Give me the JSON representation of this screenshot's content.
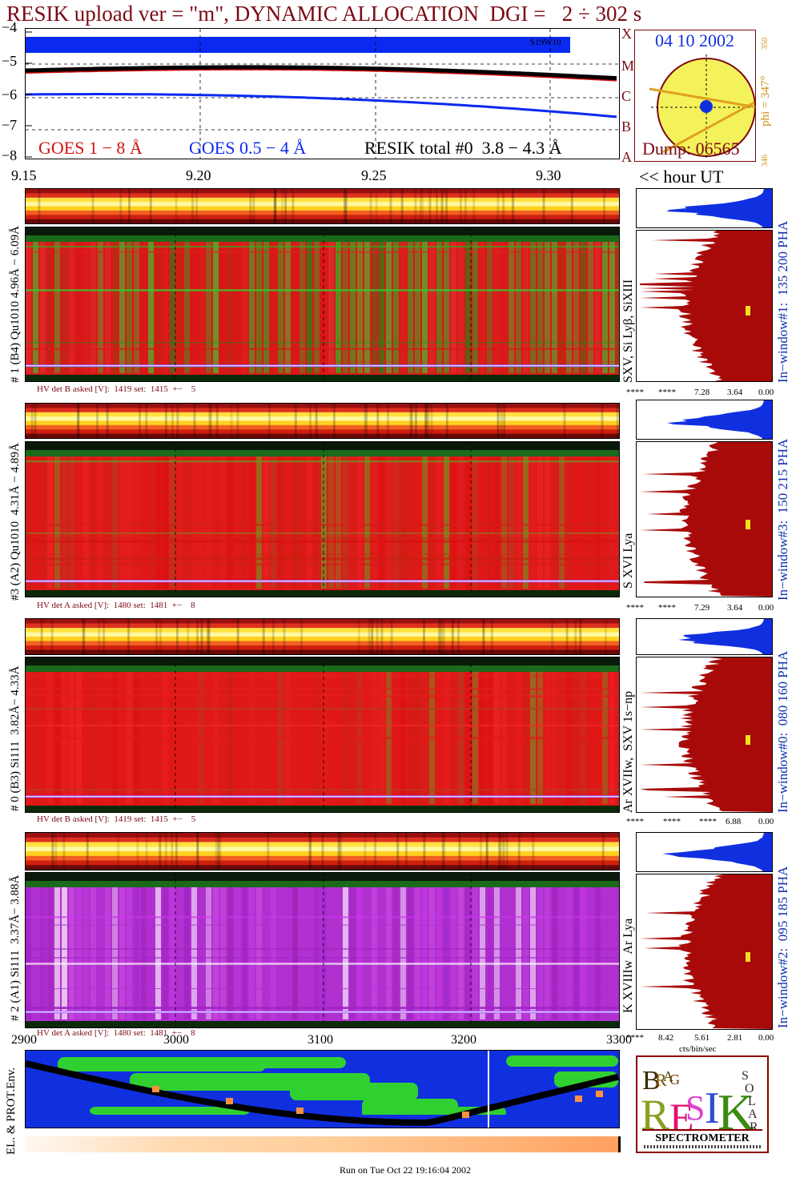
{
  "title": "RESIK upload ver = \"m\", DYNAMIC ALLOCATION  DGI =   2 ÷ 302 s",
  "goes_panel": {
    "yticks": [
      "−4",
      "−5",
      "−6",
      "−7",
      "−8"
    ],
    "flare_tag": "S19W10",
    "legend": {
      "goes_long": "GOES 1 − 8 Å",
      "goes_short": "GOES 0.5 − 4 Å",
      "resik_total": "RESIK total #0  3.8 − 4.3 Å"
    },
    "abcmx": [
      "A",
      "B",
      "C",
      "M",
      "X"
    ],
    "colors": {
      "goes_long": "#d01010",
      "goes_short": "#0a2af0",
      "resik": "#000000"
    }
  },
  "sun_panel": {
    "date": "04 10 2002",
    "dump": "Dump: 06565",
    "phi": "phi = 347°",
    "phi_top": "350",
    "phi_bottom": "346"
  },
  "time_axis": {
    "ticks": [
      "9.15",
      "9.20",
      "9.25",
      "9.30"
    ],
    "unit_label": "<< hour UT"
  },
  "channels": [
    {
      "left_label": "# 1 (B4) Qu1010 4.96Å − 6.09Å",
      "right_label": "SXV, Si Lyβ, SiXIII",
      "window_label": "In−window#1:  135 200 PHA",
      "hv": "HV det B asked [V]:  1419 set:  1415  +−    5",
      "pha_ticks": [
        "****",
        "****",
        "7.28",
        "3.64",
        "0.00"
      ],
      "dominant": "green"
    },
    {
      "left_label": "#3 (A2) Qu1010  4.31Å − 4.89Å",
      "right_label": "S XVI Lya",
      "window_label": "In−window#3:  150 215 PHA",
      "hv": "HV det A asked [V]:  1480 set:  1481  +−    8",
      "pha_ticks": [
        "****",
        "****",
        "7.29",
        "3.64",
        "0.00"
      ],
      "dominant": "red"
    },
    {
      "left_label": "# 0 (B3) Si111  3.82Å− 4.33Å",
      "right_label": "Ar XVIIw,  SXV 1s−np",
      "window_label": "In−window#0:  080 160 PHA",
      "hv": "HV det B asked [V]:  1419 set:  1415  +−    5",
      "pha_ticks": [
        "****",
        "****",
        "****",
        "6.88",
        "0.00"
      ],
      "dominant": "red"
    },
    {
      "left_label": "# 2 (A1) Si111  3.37Å− 3.88Å",
      "right_label": "K XVIIIw  Ar Lya",
      "window_label": "In−window#2:  095 185 PHA",
      "hv": "HV det A asked [V]:  1480 set:  1481  +−    8",
      "pha_ticks": [
        "****",
        "8.42",
        "5.61",
        "2.81",
        "0.00"
      ],
      "dominant": "violet"
    }
  ],
  "pha_unit": "cts/bin/sec",
  "orbit_panel": {
    "ticks": [
      "2900",
      "3000",
      "3100",
      "3200",
      "3300"
    ],
    "side_label": "EL. & PROT.Env."
  },
  "logo": {
    "letters": [
      "B",
      "R",
      "A",
      "G",
      "R",
      "E",
      "S",
      "I",
      "K",
      "S",
      "O",
      "L",
      "A",
      "R"
    ],
    "caption": "SPECTROMETER"
  },
  "footer": "Run on Tue Oct 22 19:16:04 2002"
}
